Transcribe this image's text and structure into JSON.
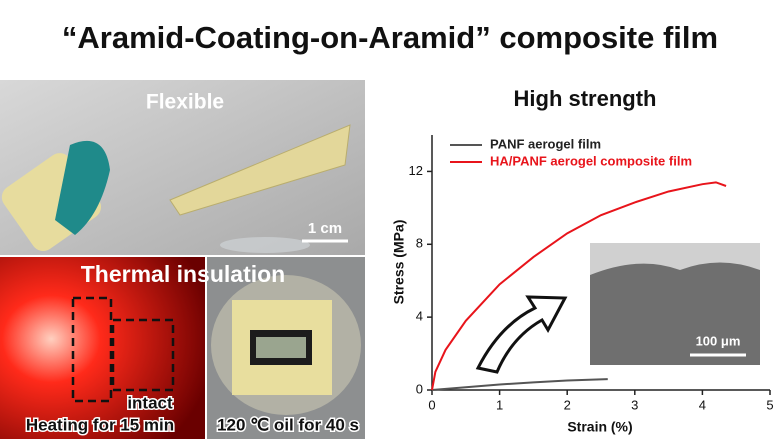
{
  "header": {
    "title": "“Aramid-Coating-on-Aramid” composite film"
  },
  "panels": {
    "flexible": {
      "label": "Flexible",
      "scale": "1 cm"
    },
    "thermal": {
      "label": "Thermal insulation",
      "intact": "intact",
      "heating": "Heating for 15 min",
      "oil": "120 ℃ oil for 40 s"
    }
  },
  "chart_data": {
    "type": "line",
    "title": "High strength",
    "x_label": "Strain (%)",
    "y_label": "Stress (MPa)",
    "xlim": [
      0,
      5
    ],
    "xticks": [
      0,
      1,
      2,
      3,
      4,
      5
    ],
    "ylim": [
      0,
      14
    ],
    "yticks": [
      0,
      4,
      8,
      12
    ],
    "legend": "upper left",
    "series": [
      {
        "name": "PANF aerogel film",
        "color": "#555555",
        "x": [
          0,
          0.5,
          1,
          1.5,
          2,
          2.6
        ],
        "values": [
          0,
          0.15,
          0.3,
          0.42,
          0.52,
          0.6
        ]
      },
      {
        "name": "HA/PANF aerogel composite film",
        "color": "#e8141b",
        "x": [
          0,
          0.05,
          0.2,
          0.5,
          1,
          1.5,
          2,
          2.5,
          3,
          3.5,
          4,
          4.2,
          4.35
        ],
        "values": [
          0,
          1.0,
          2.2,
          3.8,
          5.8,
          7.3,
          8.6,
          9.6,
          10.3,
          10.9,
          11.3,
          11.4,
          11.2
        ]
      }
    ],
    "inset_scale": "100 μm"
  }
}
